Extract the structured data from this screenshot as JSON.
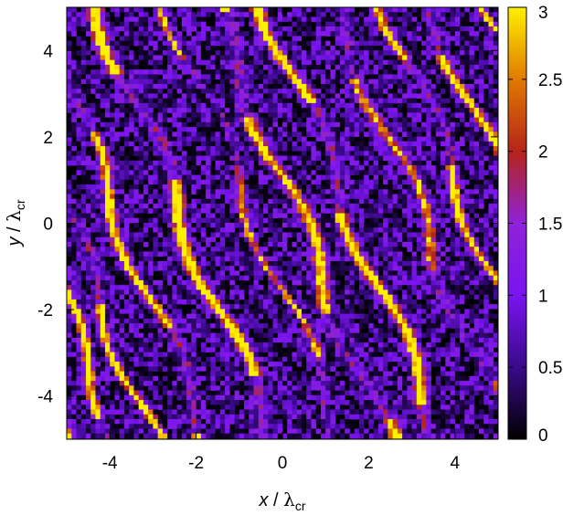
{
  "chart_data": {
    "type": "heatmap",
    "title": "",
    "xlabel": {
      "var": "x",
      "sep": " / ",
      "sym": "λ",
      "sub": "cr"
    },
    "ylabel": {
      "var": "y",
      "sep": " / ",
      "sym": "λ",
      "sub": "cr"
    },
    "xlim": [
      -5,
      5
    ],
    "ylim": [
      -5,
      5
    ],
    "x_ticks": [
      -4,
      -2,
      0,
      2,
      4
    ],
    "y_ticks": [
      -4,
      -2,
      0,
      2,
      4
    ],
    "x_tick_labels": [
      "-4",
      "-2",
      "0",
      "2",
      "4"
    ],
    "y_tick_labels": [
      "-4",
      "-2",
      "0",
      "2",
      "4"
    ],
    "colorbar": {
      "range": [
        0,
        3
      ],
      "ticks": [
        0,
        0.5,
        1,
        1.5,
        2,
        2.5,
        3
      ],
      "tick_labels": [
        "0",
        "0.5",
        "1",
        "1.5",
        "2",
        "2.5",
        "3"
      ],
      "colormap": [
        "#000000",
        "#3a0a8a",
        "#7a14f0",
        "#8f22d8",
        "#b5241a",
        "#e07a00",
        "#fff000"
      ]
    },
    "field": {
      "description": "filamentary intensity pattern; bright filaments oriented diagonally from upper-left to lower-right",
      "background_level": 0.9,
      "filament_peak": 3.0,
      "filament_slope": -2.5,
      "filament_count": 14
    },
    "grid": false
  }
}
